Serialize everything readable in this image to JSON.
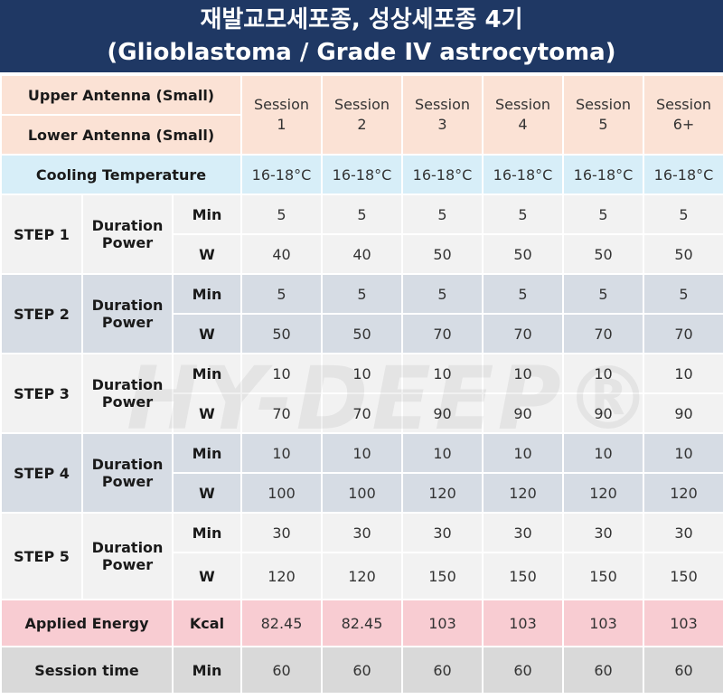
{
  "title": {
    "line1": "재발교모세포종, 성상세포종 4기",
    "line2": "(Glioblastoma / Grade IV astrocytoma)"
  },
  "header": {
    "upper": "Upper Antenna (Small)",
    "lower": "Lower Antenna (Small)",
    "sessions": [
      {
        "a": "Session",
        "b": "1"
      },
      {
        "a": "Session",
        "b": "2"
      },
      {
        "a": "Session",
        "b": "3"
      },
      {
        "a": "Session",
        "b": "4"
      },
      {
        "a": "Session",
        "b": "5"
      },
      {
        "a": "Session",
        "b": "6+"
      }
    ]
  },
  "cooling": {
    "label": "Cooling Temperature",
    "values": [
      "16-18°C",
      "16-18°C",
      "16-18°C",
      "16-18°C",
      "16-18°C",
      "16-18°C"
    ]
  },
  "steps": [
    {
      "label": "STEP 1",
      "desc1": "Duration",
      "desc2": "Power",
      "unit_min": "Min",
      "unit_w": "W",
      "min": [
        "5",
        "5",
        "5",
        "5",
        "5",
        "5"
      ],
      "w": [
        "40",
        "40",
        "50",
        "50",
        "50",
        "50"
      ]
    },
    {
      "label": "STEP 2",
      "desc1": "Duration",
      "desc2": "Power",
      "unit_min": "Min",
      "unit_w": "W",
      "min": [
        "5",
        "5",
        "5",
        "5",
        "5",
        "5"
      ],
      "w": [
        "50",
        "50",
        "70",
        "70",
        "70",
        "70"
      ]
    },
    {
      "label": "STEP 3",
      "desc1": "Duration",
      "desc2": "Power",
      "unit_min": "Min",
      "unit_w": "W",
      "min": [
        "10",
        "10",
        "10",
        "10",
        "10",
        "10"
      ],
      "w": [
        "70",
        "70",
        "90",
        "90",
        "90",
        "90"
      ]
    },
    {
      "label": "STEP 4",
      "desc1": "Duration",
      "desc2": "Power",
      "unit_min": "Min",
      "unit_w": "W",
      "min": [
        "10",
        "10",
        "10",
        "10",
        "10",
        "10"
      ],
      "w": [
        "100",
        "100",
        "120",
        "120",
        "120",
        "120"
      ]
    },
    {
      "label": "STEP 5",
      "desc1": "Duration",
      "desc2": "Power",
      "unit_min": "Min",
      "unit_w": "W",
      "min": [
        "30",
        "30",
        "30",
        "30",
        "30",
        "30"
      ],
      "w": [
        "120",
        "120",
        "150",
        "150",
        "150",
        "150"
      ]
    }
  ],
  "energy": {
    "label": "Applied Energy",
    "unit": "Kcal",
    "values": [
      "82.45",
      "82.45",
      "103",
      "103",
      "103",
      "103"
    ]
  },
  "session_time": {
    "label": "Session time",
    "unit": "Min",
    "values": [
      "60",
      "60",
      "60",
      "60",
      "60",
      "60"
    ]
  },
  "watermark": "HY-DEEP®"
}
